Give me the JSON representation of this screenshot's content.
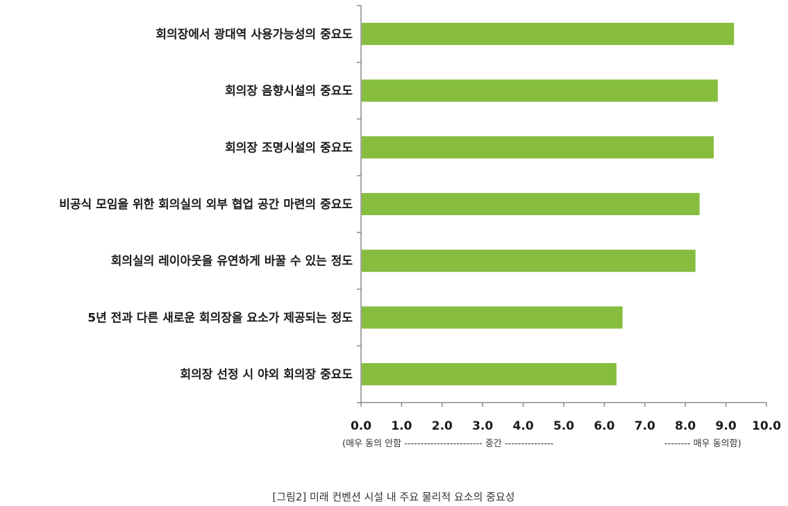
{
  "chart_data": {
    "type": "bar",
    "orientation": "horizontal",
    "categories": [
      "회의장에서 광대역 사용가능성의 중요도",
      "회의장 음향시설의 중요도",
      "회의장 조명시설의 중요도",
      "비공식 모임을 위한 회의실의 외부 협업 공간 마련의 중요도",
      "회의실의 레이아웃을 유연하게 바꿀 수 있는 정도",
      "5년 전과 다른 새로운 회의장을 요소가 제공되는 정도",
      "회의장 선정 시 야외 회의장 중요도"
    ],
    "values": [
      9.2,
      8.8,
      8.7,
      8.35,
      8.25,
      6.45,
      6.3
    ],
    "xlim": [
      0,
      10
    ],
    "xticks": [
      "0.0",
      "1.0",
      "2.0",
      "3.0",
      "4.0",
      "5.0",
      "6.0",
      "7.0",
      "8.0",
      "9.0",
      "10.0"
    ],
    "x_scale_labels": {
      "low": "(매우 동의 안함 ------------------------ 중간 ---------------",
      "high": "-------- 매우 동의함)"
    },
    "grid": false,
    "bar_color": "#86bd3f"
  },
  "caption": "[그림2] 미래 컨벤션 시설 내 주요 물리적 요소의 중요성"
}
